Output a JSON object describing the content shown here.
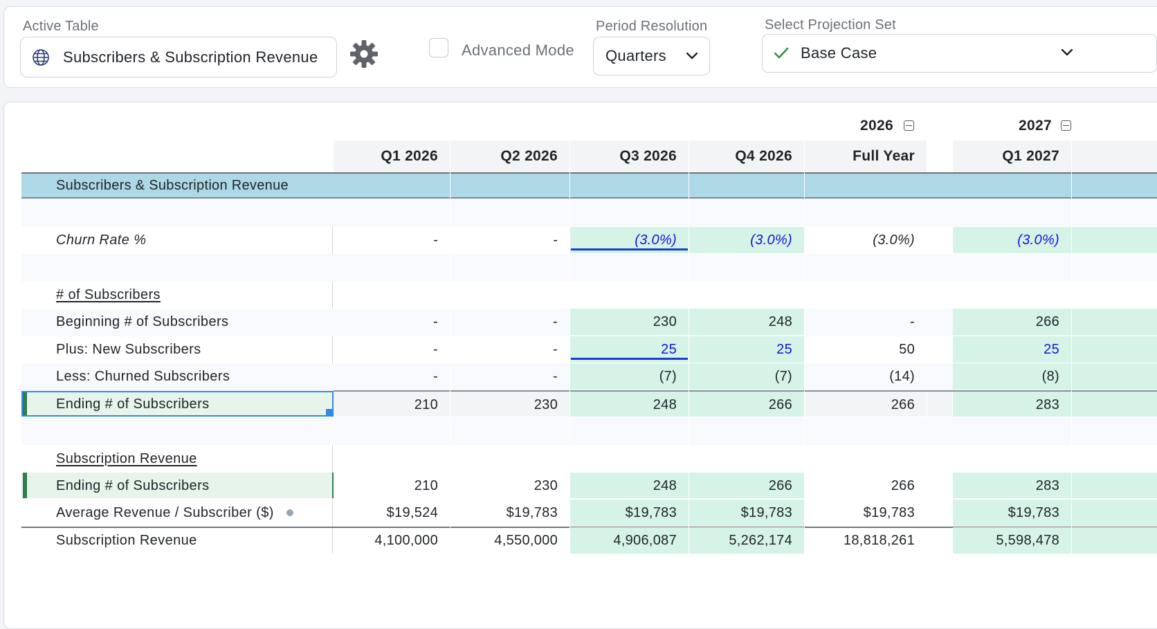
{
  "toolbar": {
    "active_table_label": "Active Table",
    "active_table_value": "Subscribers & Subscription Revenue",
    "advanced_mode_label": "Advanced Mode",
    "advanced_mode_checked": false,
    "period_label": "Period Resolution",
    "period_value": "Quarters",
    "projection_label": "Select Projection Set",
    "projection_value": "Base Case",
    "icons": [
      "globe-icon",
      "gear-icon",
      "chevron-down-icon",
      "check-icon"
    ]
  },
  "table": {
    "year_headers": [
      "2026",
      "2027"
    ],
    "columns": [
      "Q1 2026",
      "Q2 2026",
      "Q3 2026",
      "Q4 2026",
      "Full Year",
      "Q1 2027"
    ],
    "section_title": "Subscribers & Subscription Revenue",
    "rows": {
      "churn": {
        "label": "Churn Rate %",
        "values": [
          "-",
          "-",
          "(3.0%)",
          "(3.0%)",
          "(3.0%)",
          "(3.0%)"
        ]
      },
      "subs_header": {
        "label": "# of Subscribers"
      },
      "beginning": {
        "label": "Beginning # of Subscribers",
        "values": [
          "-",
          "-",
          "230",
          "248",
          "-",
          "266"
        ]
      },
      "new": {
        "label": "Plus: New Subscribers",
        "values": [
          "-",
          "-",
          "25",
          "25",
          "50",
          "25"
        ]
      },
      "churned": {
        "label": "Less: Churned Subscribers",
        "values": [
          "-",
          "-",
          "(7)",
          "(7)",
          "(14)",
          "(8)"
        ]
      },
      "ending": {
        "label": "Ending # of Subscribers",
        "values": [
          "210",
          "230",
          "248",
          "266",
          "266",
          "283"
        ]
      },
      "rev_header": {
        "label": "Subscription Revenue"
      },
      "ending2": {
        "label": "Ending # of Subscribers",
        "values": [
          "210",
          "230",
          "248",
          "266",
          "266",
          "283"
        ]
      },
      "arps": {
        "label": "Average Revenue / Subscriber ($)",
        "values": [
          "$19,524",
          "$19,783",
          "$19,783",
          "$19,783",
          "$19,783",
          "$19,783"
        ]
      },
      "revenue": {
        "label": "Subscription Revenue",
        "values": [
          "4,100,000",
          "4,550,000",
          "4,906,087",
          "5,262,174",
          "18,818,261",
          "5,598,478"
        ]
      }
    },
    "colors": {
      "section_band": "#add8e6",
      "input_cell": "#d5f3e7",
      "input_text": "#1515d9",
      "selected_row": "#e6f4ea",
      "marker": "#2e7d4f"
    }
  }
}
